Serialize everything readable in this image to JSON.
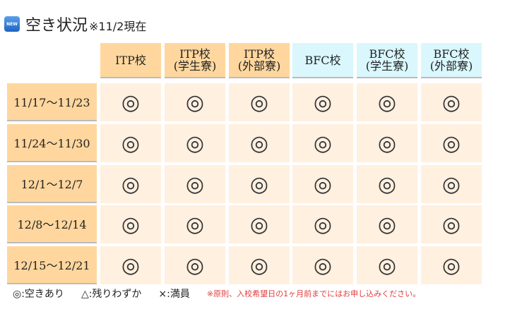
{
  "badge": "NEW",
  "title": "空き状況",
  "title_note": "※11/2現在",
  "columns": [
    {
      "line1": "ITP校",
      "line2": "",
      "school": "ITP"
    },
    {
      "line1": "ITP校",
      "line2": "(学生寮)",
      "school": "ITP"
    },
    {
      "line1": "ITP校",
      "line2": "(外部寮)",
      "school": "ITP"
    },
    {
      "line1": "BFC校",
      "line2": "",
      "school": "BFC"
    },
    {
      "line1": "BFC校",
      "line2": "(学生寮)",
      "school": "BFC"
    },
    {
      "line1": "BFC校",
      "line2": "(外部寮)",
      "school": "BFC"
    }
  ],
  "rows": [
    {
      "period": "11/17～11/23",
      "status": [
        "◎",
        "◎",
        "◎",
        "◎",
        "◎",
        "◎"
      ]
    },
    {
      "period": "11/24～11/30",
      "status": [
        "◎",
        "◎",
        "◎",
        "◎",
        "◎",
        "◎"
      ]
    },
    {
      "period": "12/1～12/7",
      "status": [
        "◎",
        "◎",
        "◎",
        "◎",
        "◎",
        "◎"
      ]
    },
    {
      "period": "12/8～12/14",
      "status": [
        "◎",
        "◎",
        "◎",
        "◎",
        "◎",
        "◎"
      ]
    },
    {
      "period": "12/15～12/21",
      "status": [
        "◎",
        "◎",
        "◎",
        "◎",
        "◎",
        "◎"
      ]
    }
  ],
  "legend": {
    "available": "◎:空きあり",
    "few": "△:残りわずか",
    "full": "×:満員",
    "note": "※原則、入校希望日の1ヶ月前までにはお申し込みください。"
  },
  "colors": {
    "itp_header": "#ffd79e",
    "bfc_header": "#d9f7fd",
    "cell_bg": "#fff0e0",
    "note_red": "#e23b3b",
    "badge_blue": "#1f63c4"
  }
}
